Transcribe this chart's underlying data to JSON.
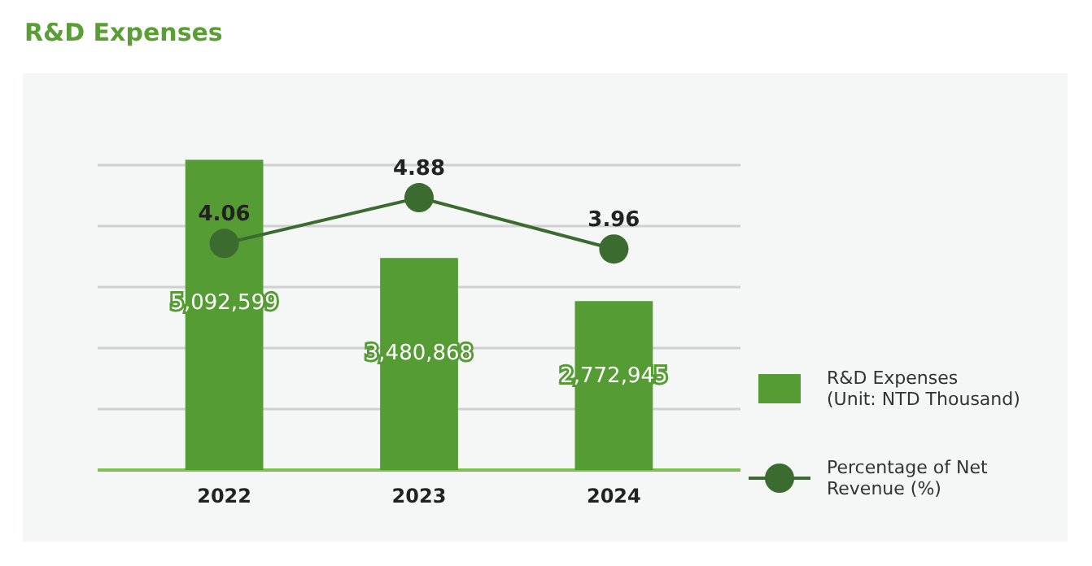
{
  "chart_data": {
    "type": "bar",
    "title": "R&D Expenses",
    "categories": [
      "2022",
      "2023",
      "2024"
    ],
    "series": [
      {
        "name": "R&D Expenses\n(Unit: NTD Thousand)",
        "color": "#559c35",
        "values": [
          5092599,
          3480868,
          2772945
        ],
        "value_labels": [
          "5,092,599",
          "3,480,868",
          "2,772,945"
        ]
      },
      {
        "name": "Percentage of Net\nRevenue (%)",
        "type": "line",
        "axis": "y2",
        "color": "#3b6b2f",
        "values": [
          4.06,
          4.88,
          3.96
        ]
      }
    ],
    "grid": "y",
    "legend": "right",
    "marker": "circle",
    "line_style": "solid",
    "data_labels": true
  }
}
